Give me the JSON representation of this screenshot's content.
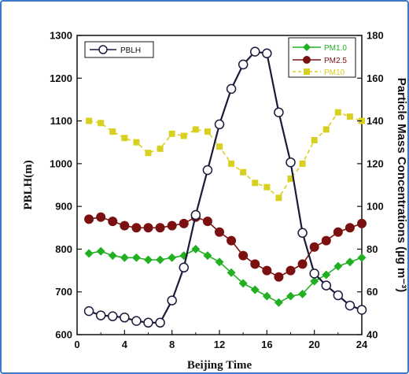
{
  "chart_data": {
    "type": "line",
    "xlabel": "Beijing Time",
    "ylabel_left": "PBLH(m)",
    "ylabel_right": "Particle Mass Concentrations (µg m⁻³)",
    "xlim": [
      0,
      24
    ],
    "ylim_left": [
      600,
      1300
    ],
    "ylim_right": [
      40,
      180
    ],
    "x_ticks": [
      "0",
      "4",
      "8",
      "12",
      "16",
      "20",
      "24"
    ],
    "y_left_ticks": [
      "600",
      "700",
      "800",
      "900",
      "1000",
      "1100",
      "1200",
      "1300"
    ],
    "y_right_ticks": [
      "40",
      "60",
      "80",
      "100",
      "120",
      "140",
      "160",
      "180"
    ],
    "x": [
      1,
      2,
      3,
      4,
      5,
      6,
      7,
      8,
      9,
      10,
      11,
      12,
      13,
      14,
      15,
      16,
      17,
      18,
      19,
      20,
      21,
      22,
      23,
      24
    ],
    "legend_left": {
      "position": "top-left",
      "entries": [
        "PBLH"
      ]
    },
    "legend_right": {
      "position": "top-right",
      "entries": [
        "PM1.0",
        "PM2.5",
        "PM10"
      ]
    },
    "series": [
      {
        "name": "PBLH",
        "axis": "left",
        "color": "#1a1a3a",
        "marker": "open-circle",
        "values": [
          655,
          645,
          643,
          640,
          632,
          628,
          628,
          680,
          757,
          880,
          985,
          1092,
          1175,
          1232,
          1262,
          1258,
          1120,
          1003,
          838,
          743,
          715,
          692,
          668,
          658
        ]
      },
      {
        "name": "PM1.0",
        "axis": "right",
        "color": "#22b022",
        "marker": "diamond",
        "values": [
          78,
          79,
          77,
          76,
          76,
          75,
          75,
          76,
          77,
          80,
          77,
          74,
          69,
          64,
          61,
          58,
          55,
          58,
          59,
          65,
          68,
          72,
          74,
          76
        ]
      },
      {
        "name": "PM2.5",
        "axis": "right",
        "color": "#7a1010",
        "marker": "filled-circle",
        "values": [
          94,
          95,
          93,
          91,
          90,
          90,
          90,
          91,
          92,
          95,
          93,
          88,
          84,
          77,
          73,
          70,
          67,
          70,
          73,
          81,
          84,
          88,
          90,
          92
        ]
      },
      {
        "name": "PM10",
        "axis": "right",
        "color": "#d8d020",
        "marker": "square",
        "line_style": "dashed",
        "values": [
          140,
          139,
          135,
          132,
          130,
          125,
          127,
          134,
          133,
          136,
          135,
          128,
          120,
          116,
          111,
          109,
          104,
          113,
          120,
          131,
          136,
          144,
          142,
          140
        ]
      }
    ]
  }
}
